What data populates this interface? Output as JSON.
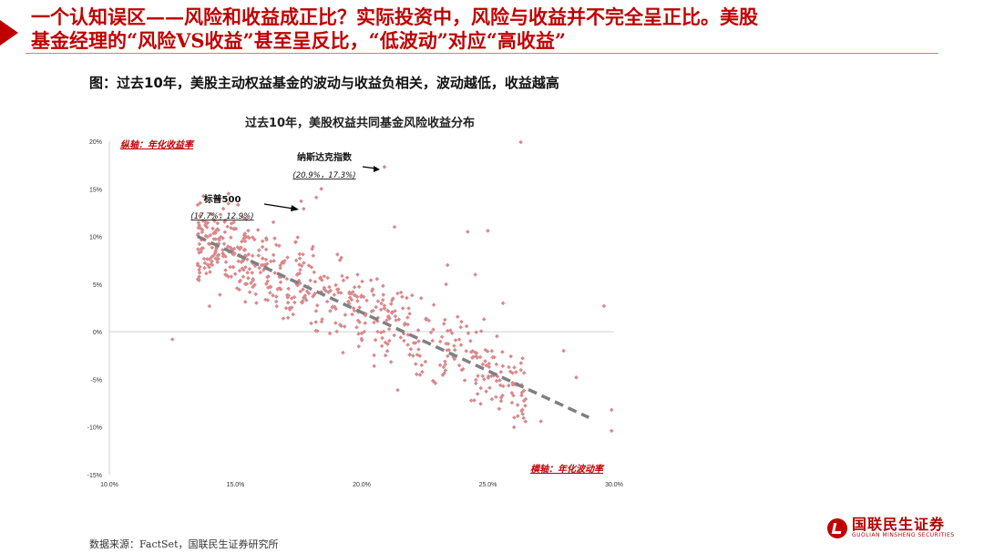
{
  "header": {
    "title_line1": "一个认知误区——风险和收益成正比？实际投资中，风险与收益并不完全呈正比。美股",
    "title_line2": "基金经理的“风险VS收益”甚至呈反比，“低波动”对应“高收益”"
  },
  "figure_caption": "图：过去10年，美股主动权益基金的波动与收益负相关，波动越低，收益越高",
  "source": "数据来源：FactSet，国联民生证券研究所",
  "logo": {
    "cn": "国联民生证券",
    "en": "GUOLIAN MINSHENG SECURITIES"
  },
  "colors": {
    "accent": "#c00000",
    "points": "#d9898c",
    "trend": "#808080"
  },
  "chart_data": {
    "type": "scatter",
    "title": "过去10年，美股权益共同基金风险收益分布",
    "ylabel": "纵轴：年化收益率",
    "xlabel": "横轴：年化波动率",
    "xlim": [
      0.1,
      0.3
    ],
    "ylim": [
      -0.15,
      0.2
    ],
    "x_ticks": [
      "10.0%",
      "15.0%",
      "20.0%",
      "25.0%",
      "30.0%"
    ],
    "y_ticks": [
      "20%",
      "15%",
      "10%",
      "5%",
      "0%",
      "-5%",
      "-10%",
      "-15%"
    ],
    "trendline": {
      "x": [
        0.135,
        0.29
      ],
      "y": [
        0.1,
        -0.09
      ]
    },
    "annotations": [
      {
        "label": "纳斯达克指数",
        "value_text": "(20.9%，17.3%)",
        "x": 0.209,
        "y": 0.173
      },
      {
        "label": "标普500",
        "value_text": "(17.7%，12.9%)",
        "x": 0.177,
        "y": 0.129
      }
    ],
    "outliers": [
      [
        0.263,
        0.199
      ],
      [
        0.125,
        -0.008
      ],
      [
        0.299,
        -0.104
      ],
      [
        0.296,
        0.027
      ],
      [
        0.25,
        0.106
      ],
      [
        0.242,
        0.105
      ],
      [
        0.177,
        0.129
      ],
      [
        0.209,
        0.173
      ],
      [
        0.184,
        0.15
      ],
      [
        0.182,
        0.141
      ],
      [
        0.176,
        0.137
      ],
      [
        0.299,
        -0.082
      ],
      [
        0.285,
        -0.048
      ],
      [
        0.271,
        -0.094
      ],
      [
        0.165,
        0.115
      ],
      [
        0.213,
        0.11
      ],
      [
        0.234,
        0.07
      ],
      [
        0.256,
        0.03
      ],
      [
        0.28,
        -0.02
      ],
      [
        0.245,
        0.06
      ]
    ],
    "points_summary": {
      "count_approx": 620,
      "trend_slope": -1.2,
      "trend_intercept": 0.262,
      "spread_sd": 0.035
    }
  }
}
